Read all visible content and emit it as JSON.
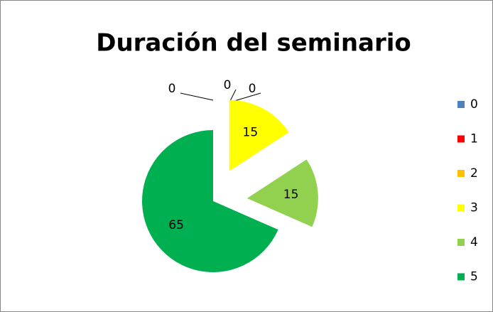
{
  "chart_data": {
    "type": "pie",
    "title": "Duración del seminario",
    "categories": [
      "0",
      "1",
      "2",
      "3",
      "4",
      "5"
    ],
    "values": [
      0,
      0,
      0,
      15,
      15,
      65
    ],
    "colors": [
      "#4f81bd",
      "#ff0000",
      "#ffc000",
      "#ffff00",
      "#92d050",
      "#00b050"
    ],
    "exploded": [
      false,
      false,
      false,
      true,
      true,
      false
    ],
    "legend": "right"
  }
}
